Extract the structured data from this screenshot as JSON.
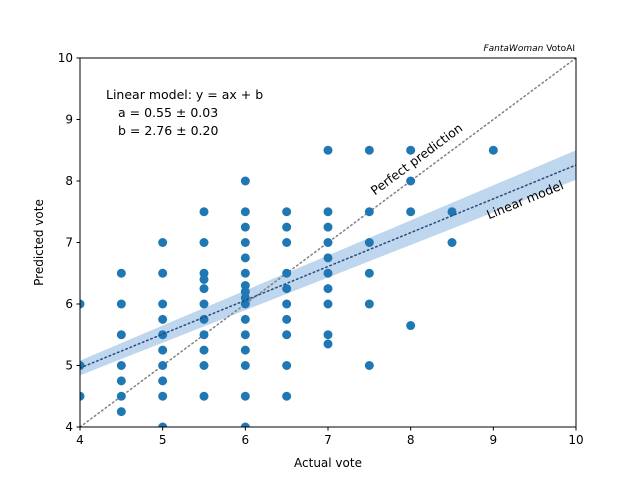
{
  "chart_data": {
    "type": "scatter",
    "xlabel": "Actual vote",
    "ylabel": "Predicted vote",
    "xlim": [
      4,
      10
    ],
    "ylim": [
      4,
      10
    ],
    "xticks": [
      "4",
      "5",
      "6",
      "7",
      "8",
      "9",
      "10"
    ],
    "yticks": [
      "4",
      "5",
      "6",
      "7",
      "8",
      "9",
      "10"
    ],
    "grid": false,
    "brand": {
      "italic": "FantaWoman",
      "plain": " VotoAI"
    },
    "annotation": {
      "line1": "Linear model: y = ax + b",
      "line2": "a = 0.55 ± 0.03",
      "line3": "b = 2.76 ± 0.20"
    },
    "perfect_line": {
      "label": "Perfect prediction",
      "color": "#808080",
      "slope": 1,
      "intercept": 0
    },
    "linear_model": {
      "label": "Linear model",
      "color": "#1f77b4",
      "band_color": "#a9c8ea",
      "a": 0.55,
      "b": 2.76,
      "band": {
        "at_x_min": 0.12,
        "at_x_max": 0.24
      }
    },
    "point_color": "#1f77b4",
    "points": [
      [
        4,
        6
      ],
      [
        4,
        5
      ],
      [
        4,
        4.5
      ],
      [
        4.5,
        6.5
      ],
      [
        4.5,
        6
      ],
      [
        4.5,
        5.5
      ],
      [
        4.5,
        5
      ],
      [
        4.5,
        4.75
      ],
      [
        4.5,
        4.5
      ],
      [
        4.5,
        4.25
      ],
      [
        5,
        7
      ],
      [
        5,
        6.5
      ],
      [
        5,
        6
      ],
      [
        5,
        5.75
      ],
      [
        5,
        5.5
      ],
      [
        5,
        5.25
      ],
      [
        5,
        5
      ],
      [
        5,
        4.75
      ],
      [
        5,
        4.5
      ],
      [
        5,
        4
      ],
      [
        5.5,
        7.5
      ],
      [
        5.5,
        7
      ],
      [
        5.5,
        6.5
      ],
      [
        5.5,
        6.4
      ],
      [
        5.5,
        6.25
      ],
      [
        5.5,
        6
      ],
      [
        5.5,
        5.75
      ],
      [
        5.5,
        5.5
      ],
      [
        5.5,
        5.25
      ],
      [
        5.5,
        5
      ],
      [
        5.5,
        4.5
      ],
      [
        6,
        8
      ],
      [
        6,
        7.5
      ],
      [
        6,
        7.25
      ],
      [
        6,
        7
      ],
      [
        6,
        6.75
      ],
      [
        6,
        6.5
      ],
      [
        6,
        6.3
      ],
      [
        6,
        6.2
      ],
      [
        6,
        6.1
      ],
      [
        6,
        6
      ],
      [
        6,
        5.75
      ],
      [
        6,
        5.5
      ],
      [
        6,
        5.25
      ],
      [
        6,
        5
      ],
      [
        6,
        4.5
      ],
      [
        6,
        4
      ],
      [
        6.5,
        7.5
      ],
      [
        6.5,
        7.25
      ],
      [
        6.5,
        7
      ],
      [
        6.5,
        6.5
      ],
      [
        6.5,
        6.25
      ],
      [
        6.5,
        6
      ],
      [
        6.5,
        5.75
      ],
      [
        6.5,
        5.5
      ],
      [
        6.5,
        5
      ],
      [
        6.5,
        4.5
      ],
      [
        7,
        8.5
      ],
      [
        7,
        7.5
      ],
      [
        7,
        7.25
      ],
      [
        7,
        7
      ],
      [
        7,
        6.75
      ],
      [
        7,
        6.5
      ],
      [
        7,
        6.25
      ],
      [
        7,
        6
      ],
      [
        7,
        5.5
      ],
      [
        7,
        5.35
      ],
      [
        7.5,
        8.5
      ],
      [
        7.5,
        7.5
      ],
      [
        7.5,
        7
      ],
      [
        7.5,
        6.5
      ],
      [
        7.5,
        6
      ],
      [
        7.5,
        5
      ],
      [
        8,
        8.5
      ],
      [
        8,
        8
      ],
      [
        8,
        7.5
      ],
      [
        8,
        5.65
      ],
      [
        8.5,
        7.5
      ],
      [
        8.5,
        7
      ],
      [
        9,
        8.5
      ]
    ]
  }
}
